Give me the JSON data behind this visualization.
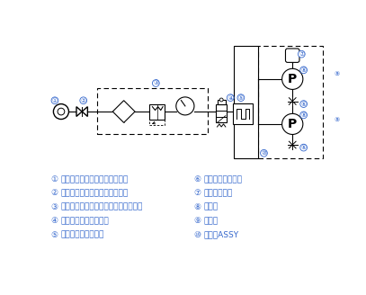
{
  "bg_color": "#ffffff",
  "line_color": "#000000",
  "label_color": "#3366cc",
  "legend_items_left": [
    [
      "①",
      "エア圧力源（ユーザーサイド）"
    ],
    [
      "②",
      "ストップバルブ（オプション）"
    ],
    [
      "③",
      "フィルタレギュレータ（オプション）"
    ],
    [
      "④",
      "電磁弁（オプション）"
    ],
    [
      "⑤",
      "パルスジェネレータ"
    ]
  ],
  "legend_items_right": [
    [
      "⑥",
      "エア量調整ツマミ"
    ],
    [
      "⑦",
      "オイルポット"
    ],
    [
      "⑧",
      "ポンプ"
    ],
    [
      "⑨",
      "ノズル"
    ],
    [
      "⑩",
      "ポンプASSY"
    ]
  ]
}
